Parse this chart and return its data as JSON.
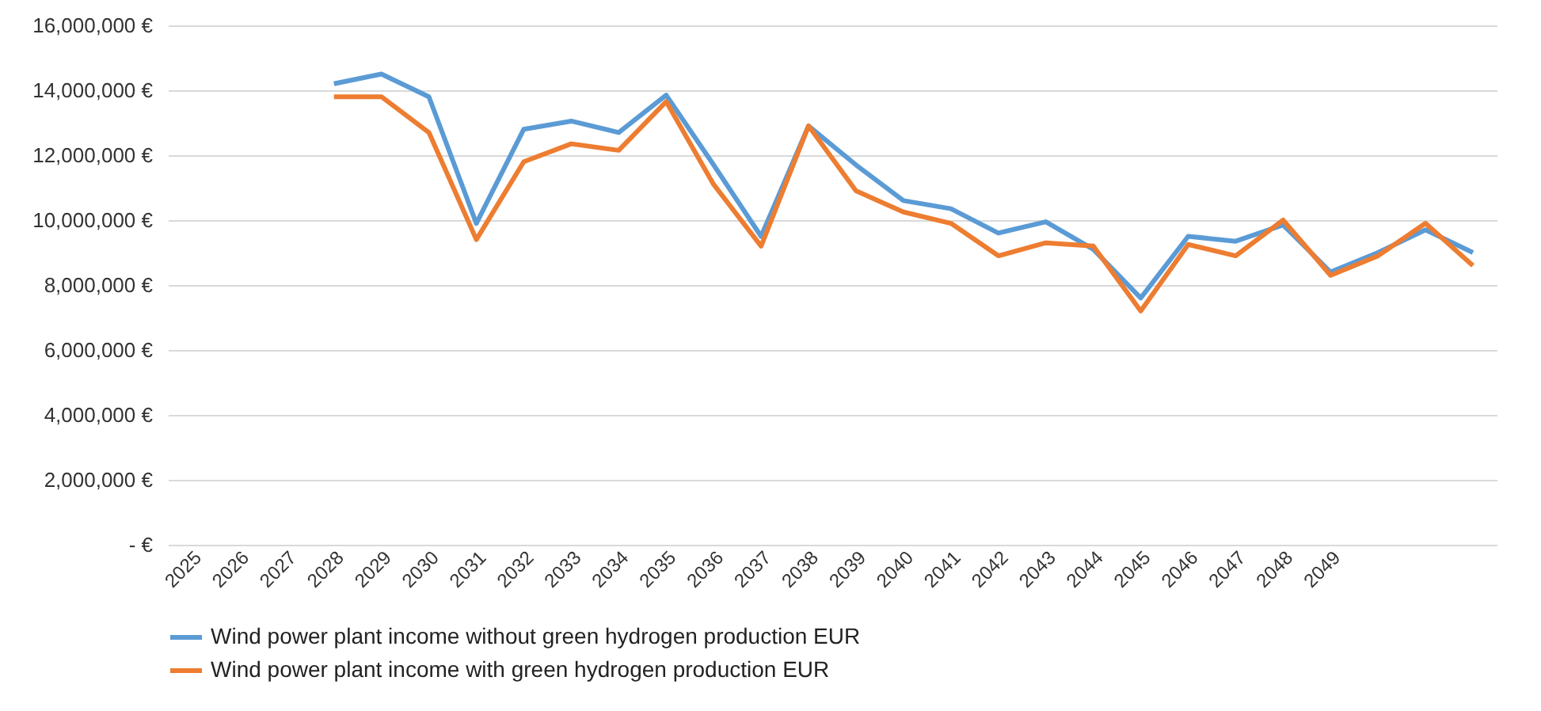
{
  "chart_data": {
    "type": "line",
    "categories": [
      "2025",
      "2026",
      "2027",
      "2028",
      "2029",
      "2030",
      "2031",
      "2032",
      "2033",
      "2034",
      "2035",
      "2036",
      "2037",
      "2038",
      "2039",
      "2040",
      "2041",
      "2042",
      "2043",
      "2044",
      "2045",
      "2046",
      "2047",
      "2048",
      "2049",
      null,
      null,
      null
    ],
    "series": [
      {
        "name": "Wind power plant income without green hydrogen production EUR",
        "color": "#5b9bd5",
        "values": [
          null,
          null,
          null,
          14200000,
          14500000,
          13800000,
          9900000,
          12800000,
          13050000,
          12700000,
          13850000,
          11700000,
          9500000,
          12900000,
          11700000,
          10600000,
          10350000,
          9600000,
          9950000,
          9100000,
          7600000,
          9500000,
          9350000,
          9850000,
          8400000,
          9000000,
          9700000,
          9000000
        ]
      },
      {
        "name": "Wind power plant income with green hydrogen production EUR",
        "color": "#ed7d31",
        "values": [
          null,
          null,
          null,
          13800000,
          13800000,
          12700000,
          9400000,
          11800000,
          12350000,
          12150000,
          13650000,
          11100000,
          9200000,
          12900000,
          10900000,
          10250000,
          9900000,
          8900000,
          9300000,
          9200000,
          7200000,
          9250000,
          8900000,
          10000000,
          8300000,
          8900000,
          9900000,
          8600000
        ]
      }
    ],
    "ylim": [
      0,
      16000000
    ],
    "yticks": [
      {
        "value": 0,
        "label": "- €"
      },
      {
        "value": 2000000,
        "label": "2,000,000 €"
      },
      {
        "value": 4000000,
        "label": "4,000,000 €"
      },
      {
        "value": 6000000,
        "label": "6,000,000 €"
      },
      {
        "value": 8000000,
        "label": "8,000,000 €"
      },
      {
        "value": 10000000,
        "label": "10,000,000 €"
      },
      {
        "value": 12000000,
        "label": "12,000,000 €"
      },
      {
        "value": 14000000,
        "label": "14,000,000 €"
      },
      {
        "value": 16000000,
        "label": "16,000,000 €"
      }
    ],
    "grid": "y",
    "legend": "bottom",
    "marker": "none",
    "line_style": "solid"
  }
}
